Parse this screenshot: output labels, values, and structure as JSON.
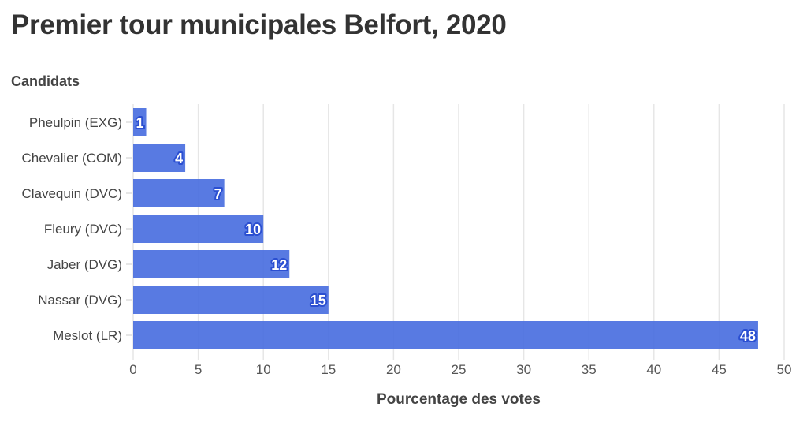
{
  "chart_data": {
    "type": "bar",
    "orientation": "horizontal",
    "title": "Premier tour municipales Belfort, 2020",
    "ylabel": "Candidats",
    "xlabel": "Pourcentage des votes",
    "categories": [
      "Pheulpin (EXG)",
      "Chevalier (COM)",
      "Clavequin (DVC)",
      "Fleury (DVC)",
      "Jaber (DVG)",
      "Nassar (DVG)",
      "Meslot (LR)"
    ],
    "values": [
      1,
      4,
      7,
      10,
      12,
      15,
      48
    ],
    "xlim": [
      0,
      50
    ],
    "xticks": [
      0,
      5,
      10,
      15,
      20,
      25,
      30,
      35,
      40,
      45,
      50
    ],
    "grid": true,
    "data_labels": true,
    "colors": {
      "bar": "#4a6fe0",
      "label_stroke": "#2b4fd1",
      "grid": "#e6e6e6",
      "text": "#444444"
    }
  }
}
